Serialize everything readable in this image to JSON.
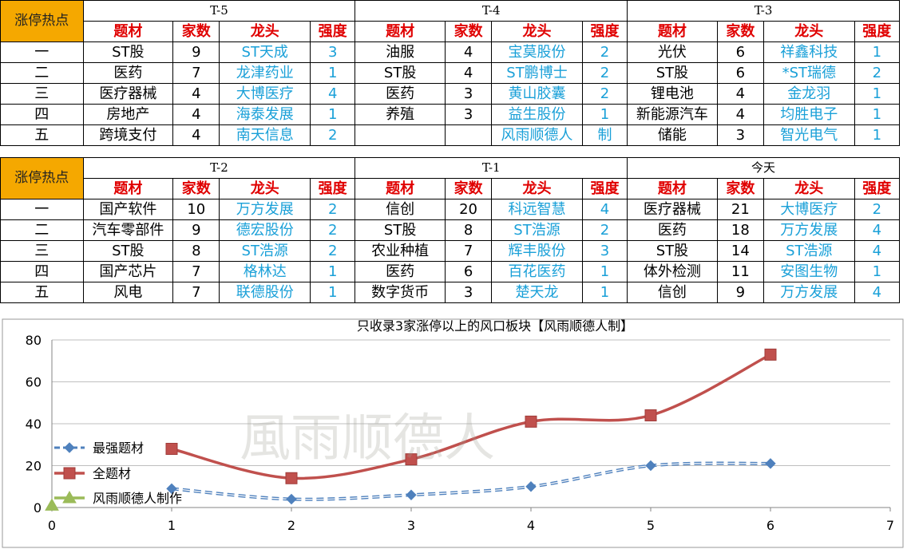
{
  "hot_label": "涨停热点",
  "col_headers": [
    "题材",
    "家数",
    "龙头",
    "强度"
  ],
  "ranks": [
    "一",
    "二",
    "三",
    "四",
    "五"
  ],
  "top_block": {
    "periods": [
      {
        "label": "T-5",
        "rows": [
          {
            "theme": "ST股",
            "count": "9",
            "leader": "ST天成",
            "strength": "3"
          },
          {
            "theme": "医药",
            "count": "7",
            "leader": "龙津药业",
            "strength": "1"
          },
          {
            "theme": "医疗器械",
            "count": "4",
            "leader": "大博医疗",
            "strength": "4"
          },
          {
            "theme": "房地产",
            "count": "4",
            "leader": "海泰发展",
            "strength": "1"
          },
          {
            "theme": "跨境支付",
            "count": "4",
            "leader": "南天信息",
            "strength": "2"
          }
        ]
      },
      {
        "label": "T-4",
        "rows": [
          {
            "theme": "油服",
            "count": "4",
            "leader": "宝莫股份",
            "strength": "2"
          },
          {
            "theme": "ST股",
            "count": "4",
            "leader": "ST鹏博士",
            "strength": "2"
          },
          {
            "theme": "医药",
            "count": "3",
            "leader": "黄山胶囊",
            "strength": "2"
          },
          {
            "theme": "养殖",
            "count": "3",
            "leader": "益生股份",
            "strength": "1"
          },
          {
            "theme": "",
            "count": "",
            "leader": "风雨顺德人",
            "strength": "制"
          }
        ]
      },
      {
        "label": "T-3",
        "rows": [
          {
            "theme": "光伏",
            "count": "6",
            "leader": "祥鑫科技",
            "strength": "1"
          },
          {
            "theme": "ST股",
            "count": "6",
            "leader": "*ST瑞德",
            "strength": "2"
          },
          {
            "theme": "锂电池",
            "count": "4",
            "leader": "金龙羽",
            "strength": "1"
          },
          {
            "theme": "新能源汽车",
            "count": "4",
            "leader": "均胜电子",
            "strength": "1"
          },
          {
            "theme": "储能",
            "count": "3",
            "leader": "智光电气",
            "strength": "1"
          }
        ]
      }
    ]
  },
  "bottom_block": {
    "periods": [
      {
        "label": "T-2",
        "rows": [
          {
            "theme": "国产软件",
            "count": "10",
            "leader": "万方发展",
            "strength": "2"
          },
          {
            "theme": "汽车零部件",
            "count": "9",
            "leader": "德宏股份",
            "strength": "2"
          },
          {
            "theme": "ST股",
            "count": "8",
            "leader": "ST浩源",
            "strength": "2"
          },
          {
            "theme": "国产芯片",
            "count": "7",
            "leader": "格林达",
            "strength": "1"
          },
          {
            "theme": "风电",
            "count": "7",
            "leader": "联德股份",
            "strength": "1"
          }
        ]
      },
      {
        "label": "T-1",
        "rows": [
          {
            "theme": "信创",
            "count": "20",
            "leader": "科远智慧",
            "strength": "4"
          },
          {
            "theme": "ST股",
            "count": "8",
            "leader": "ST浩源",
            "strength": "2"
          },
          {
            "theme": "农业种植",
            "count": "7",
            "leader": "辉丰股份",
            "strength": "3"
          },
          {
            "theme": "医药",
            "count": "6",
            "leader": "百花医药",
            "strength": "1"
          },
          {
            "theme": "数字货币",
            "count": "3",
            "leader": "楚天龙",
            "strength": "1"
          }
        ]
      },
      {
        "label": "今天",
        "rows": [
          {
            "theme": "医疗器械",
            "count": "21",
            "leader": "大博医疗",
            "strength": "2"
          },
          {
            "theme": "医药",
            "count": "18",
            "leader": "万方发展",
            "strength": "4"
          },
          {
            "theme": "ST股",
            "count": "14",
            "leader": "ST浩源",
            "strength": "4"
          },
          {
            "theme": "体外检测",
            "count": "11",
            "leader": "安图生物",
            "strength": "1"
          },
          {
            "theme": "信创",
            "count": "9",
            "leader": "万方发展",
            "strength": "4"
          }
        ]
      }
    ]
  },
  "watermark_text": "風雨顺德人",
  "colors": {
    "hot_bg": "#f5a800",
    "header_red": "#e00000",
    "leader_blue": "#1aa0d8",
    "series_red": "#c0504d",
    "series_blue": "#4f81bd",
    "series_green": "#9bbb59"
  },
  "chart_data": {
    "type": "line",
    "title": "只收录3家涨停以上的风口板块【风雨顺德人制】",
    "xlabel": "",
    "ylabel": "",
    "xlim": [
      0,
      7
    ],
    "ylim": [
      0,
      80
    ],
    "x_ticks": [
      0,
      1,
      2,
      3,
      4,
      5,
      6,
      7
    ],
    "y_ticks": [
      0,
      20,
      40,
      60,
      80
    ],
    "grid": "horizontal",
    "legend_position": "left",
    "series": [
      {
        "name": "最强题材",
        "color": "#4f81bd",
        "style": "dashed",
        "marker": "diamond",
        "x": [
          1,
          2,
          3,
          4,
          5,
          6
        ],
        "y": [
          9,
          4,
          6,
          10,
          20,
          21
        ]
      },
      {
        "name": "全题材",
        "color": "#c0504d",
        "style": "solid",
        "marker": "square",
        "x": [
          1,
          2,
          3,
          4,
          5,
          6
        ],
        "y": [
          28,
          14,
          23,
          41,
          44,
          73
        ]
      },
      {
        "name": "风雨顺德人制作",
        "color": "#9bbb59",
        "style": "solid",
        "marker": "triangle",
        "x": [
          0
        ],
        "y": [
          1
        ]
      }
    ]
  }
}
